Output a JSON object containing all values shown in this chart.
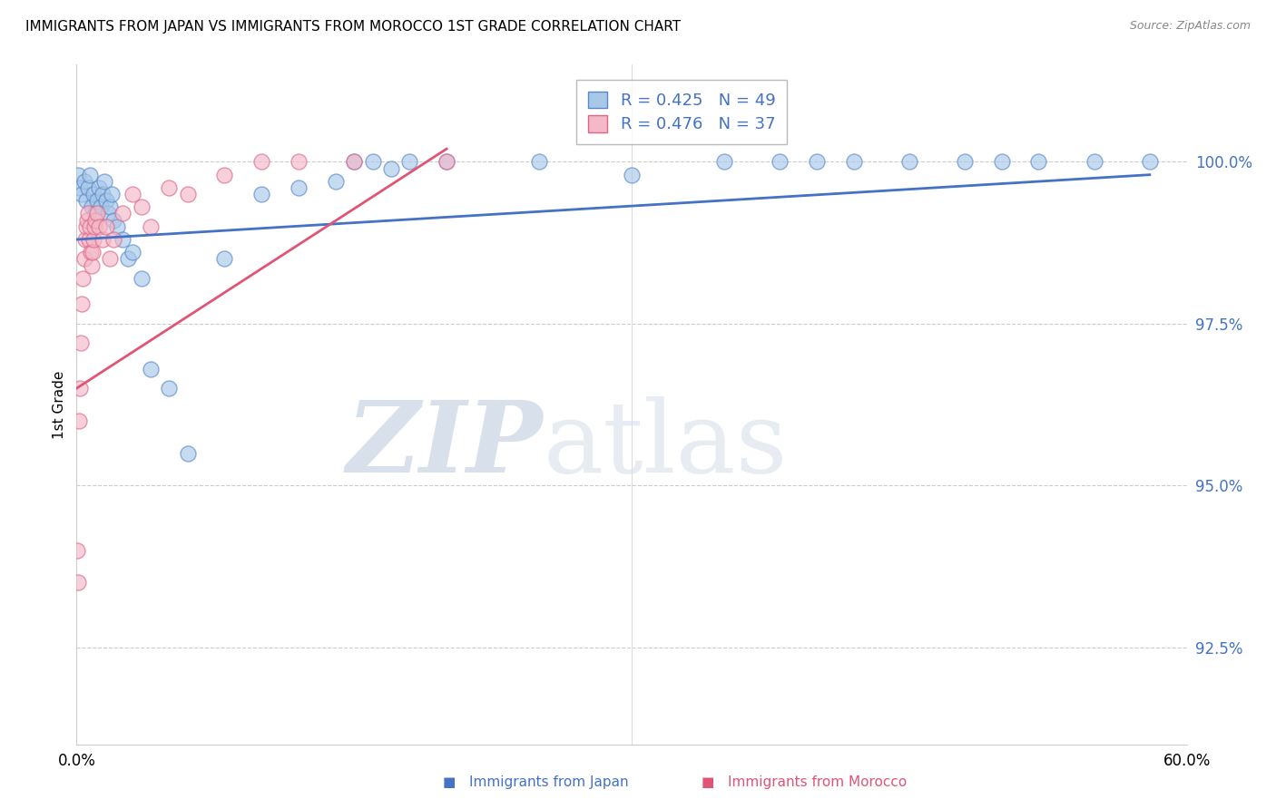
{
  "title": "IMMIGRANTS FROM JAPAN VS IMMIGRANTS FROM MOROCCO 1ST GRADE CORRELATION CHART",
  "source": "Source: ZipAtlas.com",
  "ylabel_label": "1st Grade",
  "y_ticks": [
    92.5,
    95.0,
    97.5,
    100.0
  ],
  "y_tick_labels": [
    "92.5%",
    "95.0%",
    "97.5%",
    "100.0%"
  ],
  "xlim": [
    0.0,
    60.0
  ],
  "ylim": [
    91.0,
    101.5
  ],
  "japan_R": 0.425,
  "japan_N": 49,
  "morocco_R": 0.476,
  "morocco_N": 37,
  "japan_color": "#a8c8e8",
  "morocco_color": "#f4b8c8",
  "japan_edge_color": "#5588cc",
  "morocco_edge_color": "#dd6688",
  "japan_line_color": "#4472c4",
  "morocco_line_color": "#e05575",
  "watermark_zip_color": "#c8d4e4",
  "watermark_atlas_color": "#d4dce8",
  "japan_x": [
    0.1,
    0.2,
    0.3,
    0.4,
    0.5,
    0.6,
    0.7,
    0.8,
    0.9,
    1.0,
    1.1,
    1.2,
    1.3,
    1.4,
    1.5,
    1.6,
    1.7,
    1.8,
    1.9,
    2.0,
    2.2,
    2.5,
    2.8,
    3.0,
    3.5,
    4.0,
    5.0,
    6.0,
    8.0,
    10.0,
    12.0,
    14.0,
    15.0,
    16.0,
    17.0,
    18.0,
    20.0,
    25.0,
    30.0,
    35.0,
    38.0,
    40.0,
    42.0,
    45.0,
    48.0,
    50.0,
    52.0,
    55.0,
    58.0
  ],
  "japan_y": [
    99.8,
    99.6,
    99.5,
    99.7,
    99.4,
    99.6,
    99.8,
    99.3,
    99.5,
    99.2,
    99.4,
    99.6,
    99.3,
    99.5,
    99.7,
    99.4,
    99.2,
    99.3,
    99.5,
    99.1,
    99.0,
    98.8,
    98.5,
    98.6,
    98.2,
    96.8,
    96.5,
    95.5,
    98.5,
    99.5,
    99.6,
    99.7,
    100.0,
    100.0,
    99.9,
    100.0,
    100.0,
    100.0,
    99.8,
    100.0,
    100.0,
    100.0,
    100.0,
    100.0,
    100.0,
    100.0,
    100.0,
    100.0,
    100.0
  ],
  "morocco_x": [
    0.05,
    0.1,
    0.15,
    0.2,
    0.25,
    0.3,
    0.35,
    0.4,
    0.45,
    0.5,
    0.55,
    0.6,
    0.65,
    0.7,
    0.75,
    0.8,
    0.85,
    0.9,
    0.95,
    1.0,
    1.1,
    1.2,
    1.4,
    1.6,
    1.8,
    2.0,
    2.5,
    3.0,
    3.5,
    4.0,
    5.0,
    6.0,
    8.0,
    10.0,
    12.0,
    15.0,
    20.0
  ],
  "morocco_y": [
    94.0,
    93.5,
    96.0,
    96.5,
    97.2,
    97.8,
    98.2,
    98.5,
    98.8,
    99.0,
    99.1,
    99.2,
    98.8,
    99.0,
    98.6,
    98.4,
    98.6,
    98.8,
    99.0,
    99.1,
    99.2,
    99.0,
    98.8,
    99.0,
    98.5,
    98.8,
    99.2,
    99.5,
    99.3,
    99.0,
    99.6,
    99.5,
    99.8,
    100.0,
    100.0,
    100.0,
    100.0
  ],
  "japan_trendline_x": [
    0.0,
    58.0
  ],
  "japan_trendline_y": [
    98.8,
    99.8
  ],
  "morocco_trendline_x": [
    0.0,
    20.0
  ],
  "morocco_trendline_y": [
    96.5,
    100.2
  ]
}
